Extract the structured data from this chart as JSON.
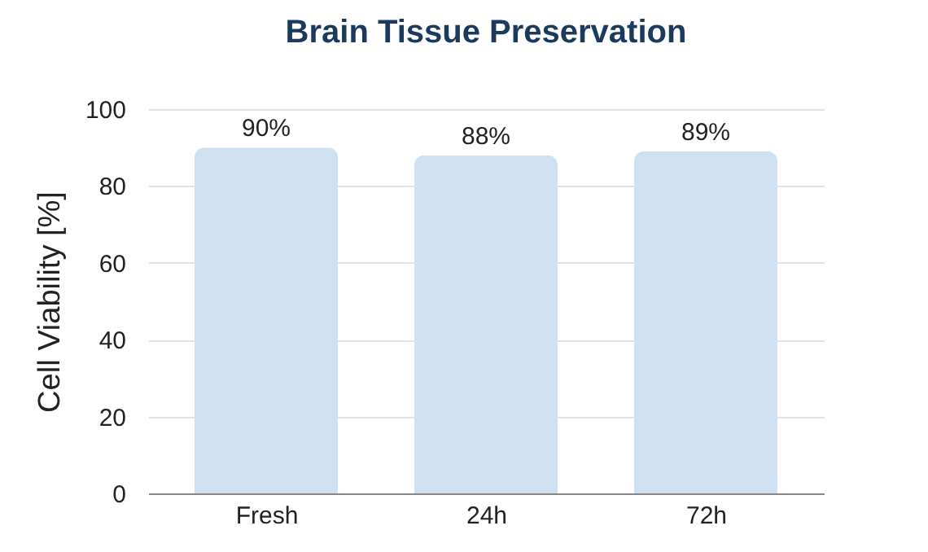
{
  "chart_data": {
    "type": "bar",
    "title": "Brain Tissue Preservation",
    "ylabel": "Cell Viability [%]",
    "categories": [
      "Fresh",
      "24h",
      "72h"
    ],
    "values": [
      90,
      88,
      89
    ],
    "value_labels": [
      "90%",
      "88%",
      "89%"
    ],
    "color": "#cfe0f3",
    "ylim": [
      0,
      100
    ],
    "yticks": [
      0,
      20,
      40,
      60,
      80,
      100
    ],
    "grid": "y"
  }
}
